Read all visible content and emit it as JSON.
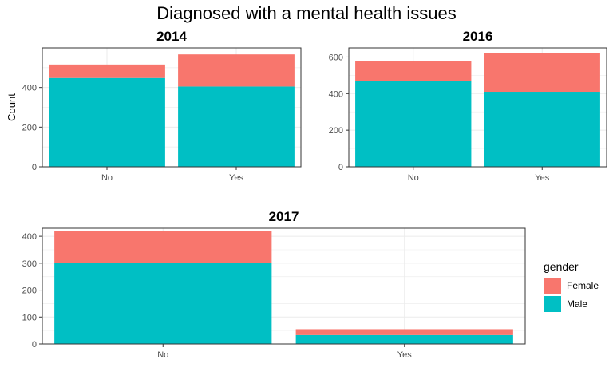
{
  "title": "Diagnosed with a mental health issues",
  "legend": {
    "title": "gender",
    "items": [
      {
        "label": "Female",
        "color": "#F8766D"
      },
      {
        "label": "Male",
        "color": "#00BFC4"
      }
    ]
  },
  "chart_data": [
    {
      "type": "bar",
      "stacked": true,
      "title": "2014",
      "ylabel": "Count",
      "xlabel": "",
      "categories": [
        "No",
        "Yes"
      ],
      "series": [
        {
          "name": "Male",
          "color": "#00BFC4",
          "values": [
            448,
            405
          ]
        },
        {
          "name": "Female",
          "color": "#F8766D",
          "values": [
            68,
            162
          ]
        }
      ],
      "ylim": [
        0,
        600
      ],
      "yticks": [
        0,
        200,
        400
      ],
      "grid": true
    },
    {
      "type": "bar",
      "stacked": true,
      "title": "2016",
      "ylabel": "",
      "xlabel": "",
      "categories": [
        "No",
        "Yes"
      ],
      "series": [
        {
          "name": "Male",
          "color": "#00BFC4",
          "values": [
            470,
            410
          ]
        },
        {
          "name": "Female",
          "color": "#F8766D",
          "values": [
            110,
            213
          ]
        }
      ],
      "ylim": [
        0,
        650
      ],
      "yticks": [
        0,
        200,
        400,
        600
      ],
      "grid": true
    },
    {
      "type": "bar",
      "stacked": true,
      "title": "2017",
      "ylabel": "",
      "xlabel": "",
      "categories": [
        "No",
        "Yes"
      ],
      "series": [
        {
          "name": "Male",
          "color": "#00BFC4",
          "values": [
            300,
            33
          ]
        },
        {
          "name": "Female",
          "color": "#F8766D",
          "values": [
            120,
            22
          ]
        }
      ],
      "ylim": [
        0,
        430
      ],
      "yticks": [
        0,
        100,
        200,
        300,
        400
      ],
      "grid": true
    }
  ]
}
